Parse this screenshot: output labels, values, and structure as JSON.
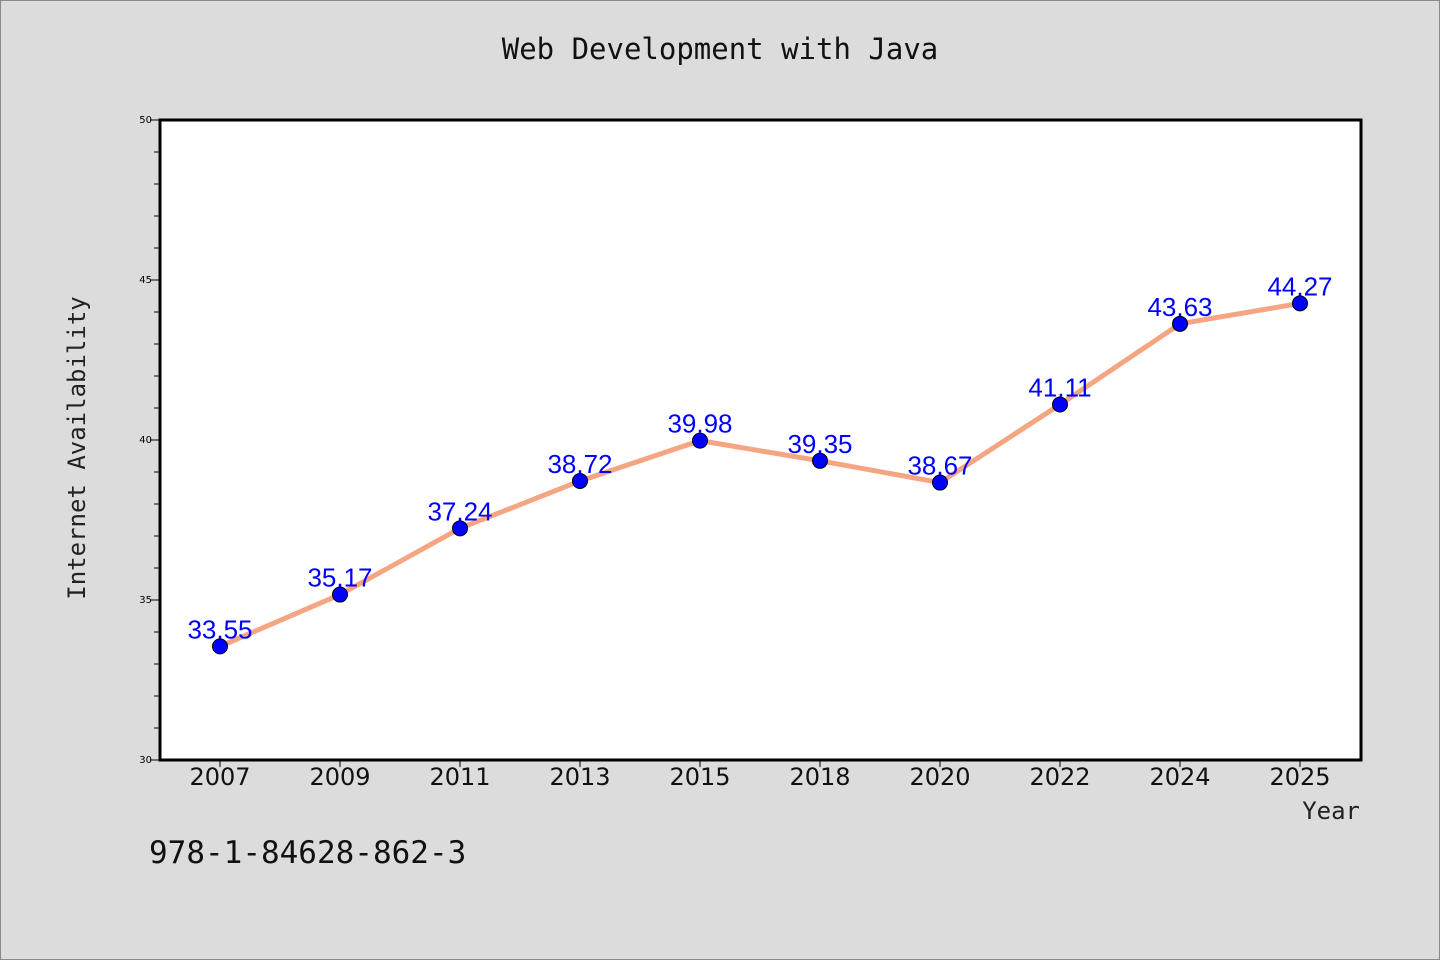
{
  "chart_data": {
    "type": "line",
    "title": "Web Development with Java",
    "xlabel": "Year",
    "ylabel": "Internet Availability",
    "categories": [
      "2007",
      "2009",
      "2011",
      "2013",
      "2015",
      "2018",
      "2020",
      "2022",
      "2024",
      "2025"
    ],
    "series": [
      {
        "values": [
          33.55,
          35.17,
          37.24,
          38.72,
          39.98,
          39.35,
          38.67,
          41.11,
          43.63,
          44.27
        ],
        "labels": [
          "33.55",
          "35.17",
          "37.24",
          "38.72",
          "39.98",
          "39.35",
          "38.67",
          "41.11",
          "43.63",
          "44.27"
        ],
        "line_color": "#f4a582",
        "marker_color": "#0000ff"
      }
    ],
    "ylim": [
      30,
      50
    ],
    "y_ticks": [
      "30",
      "35",
      "40",
      "45",
      "50"
    ],
    "grid": false,
    "legend": "none"
  },
  "footer": {
    "isbn": "978-1-84628-862-3"
  },
  "colors": {
    "background": "#dcdcdc",
    "plot_background": "#ffffff",
    "label_color": "#0000ff"
  }
}
